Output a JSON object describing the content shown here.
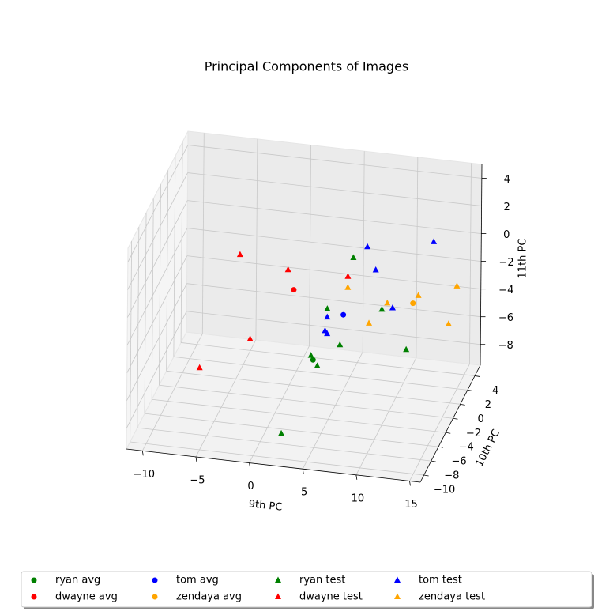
{
  "chart_data": {
    "type": "scatter3d",
    "title": "Principal Components of Images",
    "xlabel": "9th PC",
    "ylabel": "10th PC",
    "zlabel": "11th PC",
    "xlim": [
      -11.5,
      16
    ],
    "ylim": [
      -11,
      5.5
    ],
    "zlim": [
      -9.5,
      5
    ],
    "xticks": [
      {
        "value": -10,
        "label": "−10"
      },
      {
        "value": -5,
        "label": "−5"
      },
      0,
      5,
      10,
      15
    ],
    "yticks": [
      {
        "value": -10,
        "label": "−10"
      },
      {
        "value": -8,
        "label": "−8"
      },
      {
        "value": -6,
        "label": "−6"
      },
      {
        "value": -4,
        "label": "−4"
      },
      {
        "value": -2,
        "label": "−2"
      },
      0,
      2,
      4
    ],
    "zticks": [
      {
        "value": -8,
        "label": "−8"
      },
      {
        "value": -6,
        "label": "−6"
      },
      {
        "value": -4,
        "label": "−4"
      },
      {
        "value": -2,
        "label": "−2"
      },
      0,
      2,
      4
    ],
    "grid": true,
    "legend": "lower center",
    "series": [
      {
        "name": "ryan avg",
        "color": "green",
        "marker": "circle",
        "x": [
          2.2
        ],
        "y": [
          0
        ],
        "z": [
          -7.5
        ]
      },
      {
        "name": "dwayne avg",
        "color": "red",
        "marker": "circle",
        "x": [
          0.35
        ],
        "y": [
          0
        ],
        "z": [
          -2.6
        ]
      },
      {
        "name": "tom avg",
        "color": "blue",
        "marker": "circle",
        "x": [
          5.0
        ],
        "y": [
          0
        ],
        "z": [
          -4.0
        ]
      },
      {
        "name": "zendaya avg",
        "color": "orange",
        "marker": "circle",
        "x": [
          11.5
        ],
        "y": [
          0
        ],
        "z": [
          -2.6
        ]
      },
      {
        "name": "ryan test",
        "color": "green",
        "marker": "triangle",
        "x": [
          5.9,
          3.5,
          4.7,
          8.6,
          10.9,
          2.0,
          2.6,
          2.3
        ],
        "y": [
          0,
          0,
          0,
          0,
          0,
          0,
          0,
          -9
        ],
        "z": [
          0.2,
          -3.7,
          -6.2,
          -3.3,
          -6.0,
          -7.2,
          -7.9,
          -8.2
        ]
      },
      {
        "name": "dwayne test",
        "color": "red",
        "marker": "triangle",
        "x": [
          -4.7,
          -0.2,
          5.4,
          -3.7,
          -8.4
        ],
        "y": [
          0,
          0,
          0,
          0,
          0
        ],
        "z": [
          -0.5,
          -1.2,
          -1.2,
          -6.5,
          -9.0
        ]
      },
      {
        "name": "tom test",
        "color": "blue",
        "marker": "triangle",
        "x": [
          7.2,
          8.0,
          13.4,
          3.5,
          3.3,
          3.5,
          9.6
        ],
        "y": [
          0,
          0,
          0,
          0,
          0,
          0,
          0
        ],
        "z": [
          1.1,
          -0.5,
          2.0,
          -4.3,
          -5.3,
          -5.5,
          -3.1
        ]
      },
      {
        "name": "zendaya test",
        "color": "orange",
        "marker": "triangle",
        "x": [
          5.4,
          9.1,
          12.0,
          15.6,
          7.4,
          14.85
        ],
        "y": [
          0,
          0,
          0,
          0,
          0,
          0
        ],
        "z": [
          -2.0,
          -2.8,
          -2.0,
          -1.0,
          -4.4,
          -3.8
        ]
      }
    ]
  }
}
